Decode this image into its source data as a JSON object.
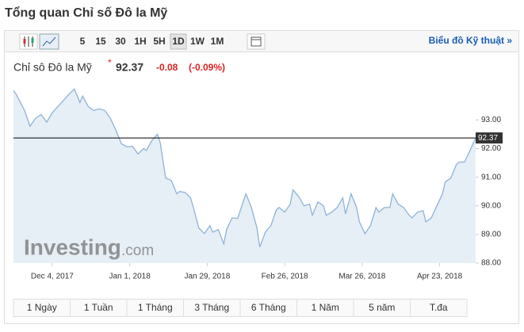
{
  "header": {
    "title": "Tổng quan Chỉ số Đô la Mỹ"
  },
  "toolbar": {
    "intervals": [
      "5",
      "15",
      "30",
      "1H",
      "5H",
      "1D",
      "1W",
      "1M"
    ],
    "link": "Biểu đồ Kỹ thuật »"
  },
  "quote": {
    "name": "Chỉ sô Đô la Mỹ",
    "marker": "*",
    "price": 92.37,
    "change": -0.08,
    "change_percent": "(-0.09%)"
  },
  "watermark": [
    "Investing",
    ".com"
  ],
  "ranges": [
    "1 Ngày",
    "1 Tuần",
    "1 Tháng",
    "3 Tháng",
    "6 Tháng",
    "1 Năm",
    "5 năm",
    "T.đa"
  ],
  "chart_data": {
    "type": "area",
    "x": [
      "2017-11-20",
      "2017-11-21",
      "2017-11-24",
      "2017-11-26",
      "2017-11-28",
      "2017-11-30",
      "2017-12-02",
      "2017-12-04",
      "2017-12-06",
      "2017-12-08",
      "2017-12-10",
      "2017-12-12",
      "2017-12-14",
      "2017-12-15",
      "2017-12-17",
      "2017-12-19",
      "2017-12-21",
      "2017-12-23",
      "2017-12-25",
      "2017-12-27",
      "2017-12-29",
      "2017-12-31",
      "2018-01-02",
      "2018-01-04",
      "2018-01-06",
      "2018-01-07",
      "2018-01-09",
      "2018-01-11",
      "2018-01-12",
      "2018-01-14",
      "2018-01-16",
      "2018-01-18",
      "2018-01-19",
      "2018-01-21",
      "2018-01-23",
      "2018-01-24",
      "2018-01-26",
      "2018-01-28",
      "2018-01-30",
      "2018-01-31",
      "2018-02-02",
      "2018-02-04",
      "2018-02-05",
      "2018-02-07",
      "2018-02-09",
      "2018-02-11",
      "2018-02-12",
      "2018-02-14",
      "2018-02-16",
      "2018-02-17",
      "2018-02-19",
      "2018-02-21",
      "2018-02-23",
      "2018-02-24",
      "2018-02-26",
      "2018-02-28",
      "2018-03-01",
      "2018-03-03",
      "2018-03-05",
      "2018-03-07",
      "2018-03-08",
      "2018-03-10",
      "2018-03-12",
      "2018-03-13",
      "2018-03-15",
      "2018-03-17",
      "2018-03-19",
      "2018-03-20",
      "2018-03-22",
      "2018-03-24",
      "2018-03-25",
      "2018-03-27",
      "2018-03-29",
      "2018-03-31",
      "2018-04-01",
      "2018-04-03",
      "2018-04-05",
      "2018-04-06",
      "2018-04-08",
      "2018-04-10",
      "2018-04-12",
      "2018-04-13",
      "2018-04-15",
      "2018-04-17",
      "2018-04-18",
      "2018-04-20",
      "2018-04-22",
      "2018-04-24",
      "2018-04-25",
      "2018-04-27",
      "2018-04-29",
      "2018-04-30",
      "2018-05-02",
      "2018-05-04",
      "2018-05-06"
    ],
    "values": [
      94.03,
      93.89,
      93.33,
      92.78,
      93.06,
      93.19,
      92.92,
      93.25,
      93.47,
      93.67,
      93.89,
      94.08,
      93.61,
      93.83,
      93.47,
      93.33,
      93.39,
      93.33,
      93.06,
      92.64,
      92.17,
      92.06,
      92.08,
      91.81,
      92.0,
      91.94,
      92.28,
      92.5,
      92.22,
      90.97,
      90.89,
      90.42,
      90.5,
      90.47,
      90.28,
      89.94,
      89.22,
      89.03,
      89.31,
      89.08,
      89.17,
      88.67,
      89.17,
      89.58,
      89.56,
      90.14,
      90.42,
      89.94,
      89.22,
      88.56,
      89.08,
      89.31,
      89.86,
      89.94,
      89.78,
      90.06,
      90.56,
      90.33,
      90.0,
      90.06,
      89.67,
      90.14,
      90.0,
      89.67,
      89.78,
      89.94,
      90.28,
      89.72,
      90.42,
      89.94,
      89.44,
      89.03,
      89.31,
      89.94,
      89.78,
      89.94,
      89.94,
      90.42,
      90.06,
      89.94,
      89.67,
      89.58,
      89.78,
      89.83,
      89.44,
      89.58,
      90.0,
      90.42,
      90.83,
      90.97,
      91.44,
      91.53,
      91.53,
      91.94,
      92.37
    ],
    "color": "#8fb3d6",
    "fill": "#e6eef6",
    "xlim": [
      "2017-11-20",
      "2018-05-06"
    ],
    "xticks": [
      {
        "value": "2017-12-04",
        "label": "Dec 4, 2017"
      },
      {
        "value": "2018-01-01",
        "label": "Jan 1, 2018"
      },
      {
        "value": "2018-01-29",
        "label": "Jan 29, 2018"
      },
      {
        "value": "2018-02-26",
        "label": "Feb 26, 2018"
      },
      {
        "value": "2018-03-26",
        "label": "Mar 26, 2018"
      },
      {
        "value": "2018-04-23",
        "label": "Apr 23, 2018"
      }
    ],
    "ylim": [
      88,
      94.2
    ],
    "yticks": [
      {
        "value": 88,
        "label": "88.00"
      },
      {
        "value": 89,
        "label": "89.00"
      },
      {
        "value": 90,
        "label": "90.00"
      },
      {
        "value": 91,
        "label": "91.00"
      },
      {
        "value": 92,
        "label": "92.00"
      },
      {
        "value": 93,
        "label": "93.00"
      }
    ]
  }
}
